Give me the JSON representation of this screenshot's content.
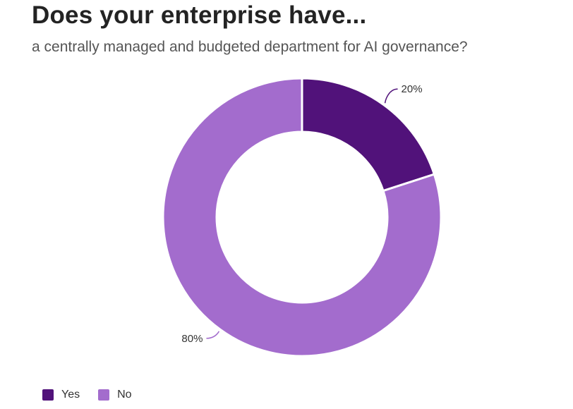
{
  "header": {
    "title": "Does your enterprise have...",
    "subtitle": "a centrally managed and budgeted department for AI governance?"
  },
  "chart_data": {
    "type": "pie",
    "variant": "donut",
    "title": "Does your enterprise have...",
    "subtitle": "a centrally managed and budgeted department for AI governance?",
    "categories": [
      "Yes",
      "No"
    ],
    "values": [
      20,
      80
    ],
    "unit": "%",
    "labels": [
      "20%",
      "80%"
    ],
    "colors": [
      "#51127a",
      "#a36ccd"
    ],
    "legend_position": "bottom-left"
  },
  "legend": [
    {
      "label": "Yes",
      "color": "#51127a"
    },
    {
      "label": "No",
      "color": "#a36ccd"
    }
  ]
}
